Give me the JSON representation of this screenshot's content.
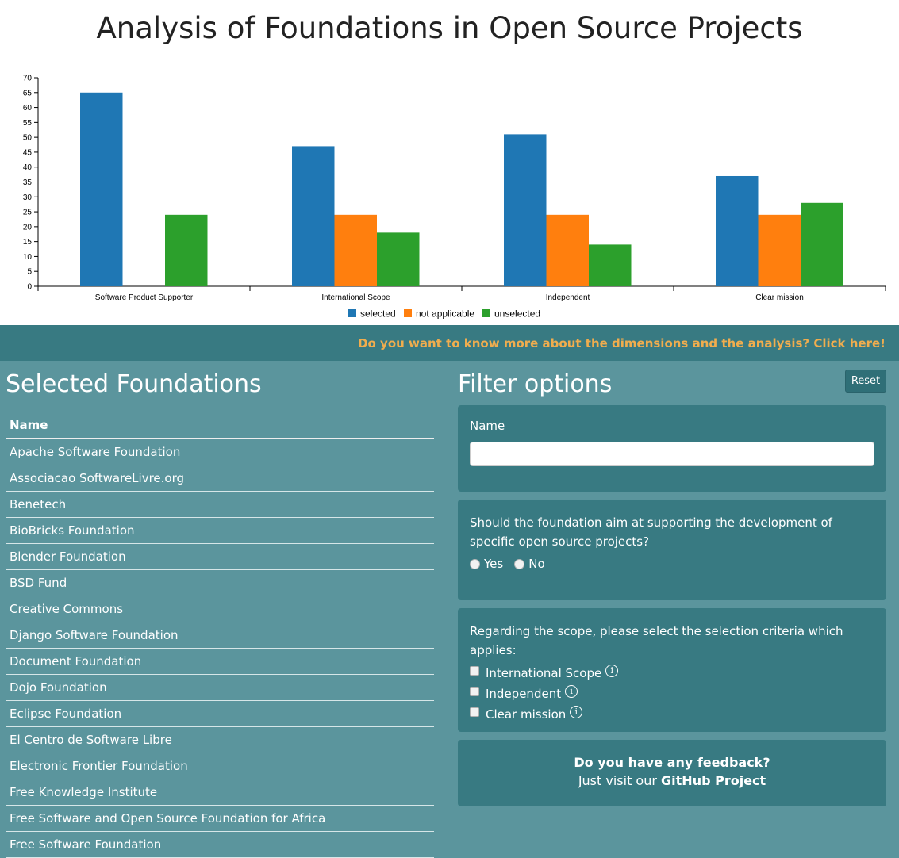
{
  "header": {
    "title": "Analysis of Foundations in Open Source Projects"
  },
  "info_bar": {
    "link_text": "Do you want to know more about the dimensions and the analysis? Click here!"
  },
  "chart_data": {
    "type": "bar",
    "categories": [
      "Software Product Supporter",
      "International Scope",
      "Independent",
      "Clear mission"
    ],
    "series": [
      {
        "name": "selected",
        "color": "#1f77b4",
        "values": [
          65,
          47,
          51,
          37
        ]
      },
      {
        "name": "not applicable",
        "color": "#ff7f0e",
        "values": [
          0,
          24,
          24,
          24
        ]
      },
      {
        "name": "unselected",
        "color": "#2ca02c",
        "values": [
          24,
          18,
          14,
          28
        ]
      }
    ],
    "ylim": [
      0,
      70
    ],
    "yticks": [
      0,
      5,
      10,
      15,
      20,
      25,
      30,
      35,
      40,
      45,
      50,
      55,
      60,
      65,
      70
    ],
    "xlabel": "",
    "ylabel": "",
    "legend_position": "bottom-center"
  },
  "selected": {
    "title": "Selected Foundations",
    "column_header": "Name",
    "rows": [
      "Apache Software Foundation",
      "Associacao SoftwareLivre.org",
      "Benetech",
      "BioBricks Foundation",
      "Blender Foundation",
      "BSD Fund",
      "Creative Commons",
      "Django Software Foundation",
      "Document Foundation",
      "Dojo Foundation",
      "Eclipse Foundation",
      "El Centro de Software Libre",
      "Electronic Frontier Foundation",
      "Free Knowledge Institute",
      "Free Software and Open Source Foundation for Africa",
      "Free Software Foundation"
    ]
  },
  "filter": {
    "title": "Filter options",
    "reset_label": "Reset",
    "name_label": "Name",
    "name_value": "",
    "question1": "Should the foundation aim at supporting the development of specific open source projects?",
    "yes_label": "Yes",
    "no_label": "No",
    "scope_question": "Regarding the scope, please select the selection criteria which applies:",
    "criteria": [
      "International Scope",
      "Independent",
      "Clear mission"
    ],
    "info_icon": "info-icon"
  },
  "feedback": {
    "title": "Do you have any feedback?",
    "text": "Just visit our",
    "link": "GitHub Project"
  }
}
